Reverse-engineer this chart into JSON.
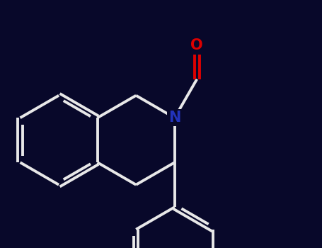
{
  "bg_color": "#08082a",
  "bond_color": "#e8e8e8",
  "n_color": "#2233bb",
  "o_color": "#dd0000",
  "line_width": 2.8,
  "figsize": [
    4.55,
    3.5
  ],
  "dpi": 100,
  "xlim": [
    -2.4,
    2.4
  ],
  "ylim": [
    -2.0,
    2.0
  ]
}
